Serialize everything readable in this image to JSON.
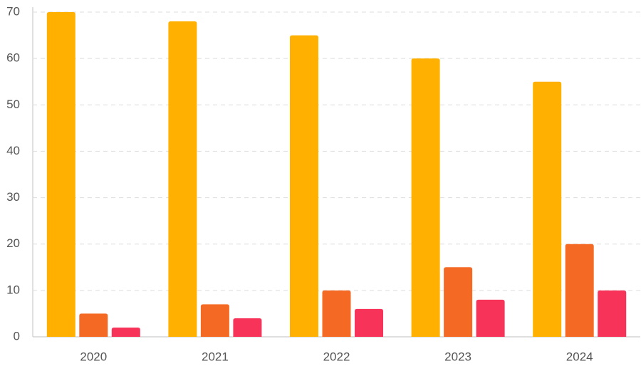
{
  "chart_data": {
    "type": "bar",
    "categories": [
      "2020",
      "2021",
      "2022",
      "2023",
      "2024"
    ],
    "series": [
      {
        "color": "#FFB000",
        "values": [
          70,
          68,
          65,
          60,
          55
        ]
      },
      {
        "color": "#F46A25",
        "values": [
          5,
          7,
          10,
          15,
          20
        ]
      },
      {
        "color": "#F8335A",
        "values": [
          2,
          4,
          6,
          8,
          10
        ]
      }
    ],
    "ylim": [
      0,
      70
    ],
    "yticks": [
      0,
      10,
      20,
      30,
      40,
      50,
      60,
      70
    ],
    "grid": true
  }
}
